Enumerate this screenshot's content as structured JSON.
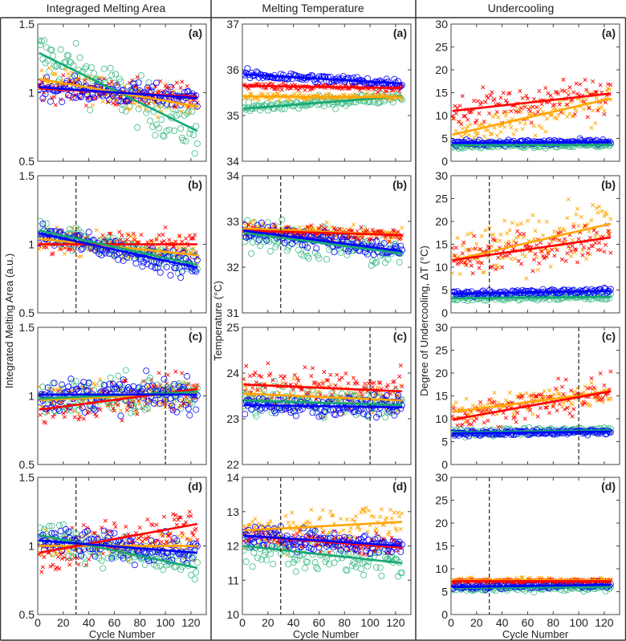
{
  "columns": [
    {
      "title": "Integraged Melting Area",
      "ylabel": "Integrated Melting Area (a.u.)"
    },
    {
      "title": "Melting Temperature",
      "ylabel": "Temperature (°C)"
    },
    {
      "title": "Undercooling",
      "ylabel": "Degree of Undercooling, ΔT (°C)"
    }
  ],
  "xlabel": "Cycle Number",
  "colors": {
    "blue": "#0000ff",
    "red": "#ff0000",
    "orange": "#ffa500",
    "green": "#16a872",
    "green_marker": "#3cbb85"
  },
  "chart_data": {
    "type": "scatter",
    "xlim": [
      0,
      132
    ],
    "xticks": [
      0,
      20,
      40,
      60,
      80,
      100,
      120
    ],
    "x_range_points": [
      1,
      125
    ],
    "panels": [
      {
        "col": 0,
        "row": 0,
        "label": "(a)",
        "ylim": [
          0.5,
          1.5
        ],
        "yticks": [
          0.5,
          1,
          1.5
        ],
        "dashed_x": null,
        "series": [
          {
            "name": "green",
            "marker": "o",
            "trend": [
              1.29,
              0.72
            ],
            "spread": 0.09
          },
          {
            "name": "orange",
            "marker": "x",
            "trend": [
              1.1,
              0.9
            ],
            "spread": 0.05
          },
          {
            "name": "red",
            "marker": "x",
            "trend": [
              1.03,
              0.97
            ],
            "spread": 0.05
          },
          {
            "name": "blue",
            "marker": "o",
            "trend": [
              1.04,
              0.96
            ],
            "spread": 0.04
          }
        ]
      },
      {
        "col": 0,
        "row": 1,
        "label": "(b)",
        "ylim": [
          0.5,
          1.5
        ],
        "yticks": [
          0.5,
          1,
          1.5
        ],
        "dashed_x": 30,
        "series": [
          {
            "name": "orange",
            "marker": "x",
            "trend": [
              1.04,
              0.92
            ],
            "spread": 0.05
          },
          {
            "name": "red",
            "marker": "x",
            "trend": [
              1.0,
              1.0
            ],
            "spread": 0.05
          },
          {
            "name": "green",
            "marker": "o",
            "trend": [
              1.1,
              0.85
            ],
            "spread": 0.04
          },
          {
            "name": "blue",
            "marker": "o",
            "trend": [
              1.08,
              0.83
            ],
            "spread": 0.04
          }
        ]
      },
      {
        "col": 0,
        "row": 2,
        "label": "(c)",
        "ylim": [
          0.5,
          1.5
        ],
        "yticks": [
          0.5,
          1,
          1.5
        ],
        "dashed_x": 100,
        "series": [
          {
            "name": "orange",
            "marker": "x",
            "trend": [
              0.97,
              1.02
            ],
            "spread": 0.06
          },
          {
            "name": "red",
            "marker": "x",
            "trend": [
              0.9,
              1.05
            ],
            "spread": 0.08
          },
          {
            "name": "green",
            "marker": "o",
            "trend": [
              0.98,
              1.03
            ],
            "spread": 0.07
          },
          {
            "name": "blue",
            "marker": "o",
            "trend": [
              1.01,
              1.01
            ],
            "spread": 0.06
          }
        ]
      },
      {
        "col": 0,
        "row": 3,
        "label": "(d)",
        "ylim": [
          0.5,
          1.5
        ],
        "yticks": [
          0.5,
          1,
          1.5
        ],
        "dashed_x": 30,
        "series": [
          {
            "name": "orange",
            "marker": "x",
            "trend": [
              1.0,
              1.0
            ],
            "spread": 0.05
          },
          {
            "name": "red",
            "marker": "x",
            "trend": [
              0.95,
              1.16
            ],
            "spread": 0.07
          },
          {
            "name": "green",
            "marker": "o",
            "trend": [
              1.08,
              0.84
            ],
            "spread": 0.06
          },
          {
            "name": "blue",
            "marker": "o",
            "trend": [
              1.04,
              0.95
            ],
            "spread": 0.05
          }
        ]
      },
      {
        "col": 1,
        "row": 0,
        "label": "(a)",
        "ylim": [
          34,
          37
        ],
        "yticks": [
          34,
          35,
          36,
          37
        ],
        "dashed_x": null,
        "series": [
          {
            "name": "green",
            "marker": "o",
            "trend": [
              35.15,
              35.42
            ],
            "spread": 0.06
          },
          {
            "name": "orange",
            "marker": "x",
            "trend": [
              35.42,
              35.4
            ],
            "spread": 0.04
          },
          {
            "name": "red",
            "marker": "x",
            "trend": [
              35.65,
              35.6
            ],
            "spread": 0.04
          },
          {
            "name": "blue",
            "marker": "o",
            "trend": [
              35.9,
              35.7
            ],
            "spread": 0.05
          }
        ]
      },
      {
        "col": 1,
        "row": 1,
        "label": "(b)",
        "ylim": [
          31,
          34
        ],
        "yticks": [
          31,
          32,
          33,
          34
        ],
        "dashed_x": 30,
        "series": [
          {
            "name": "green",
            "marker": "o",
            "trend": [
              32.75,
              32.3
            ],
            "spread": 0.2
          },
          {
            "name": "orange",
            "marker": "x",
            "trend": [
              32.85,
              32.7
            ],
            "spread": 0.08
          },
          {
            "name": "red",
            "marker": "x",
            "trend": [
              32.8,
              32.7
            ],
            "spread": 0.08
          },
          {
            "name": "blue",
            "marker": "o",
            "trend": [
              32.8,
              32.35
            ],
            "spread": 0.1
          }
        ]
      },
      {
        "col": 1,
        "row": 2,
        "label": "(c)",
        "ylim": [
          22,
          25
        ],
        "yticks": [
          22,
          23,
          24,
          25
        ],
        "dashed_x": 100,
        "series": [
          {
            "name": "orange",
            "marker": "x",
            "trend": [
              23.55,
              23.4
            ],
            "spread": 0.15
          },
          {
            "name": "red",
            "marker": "x",
            "trend": [
              23.75,
              23.6
            ],
            "spread": 0.2
          },
          {
            "name": "green",
            "marker": "o",
            "trend": [
              23.4,
              23.3
            ],
            "spread": 0.15
          },
          {
            "name": "blue",
            "marker": "o",
            "trend": [
              23.3,
              23.25
            ],
            "spread": 0.1
          }
        ]
      },
      {
        "col": 1,
        "row": 3,
        "label": "(d)",
        "ylim": [
          10,
          14
        ],
        "yticks": [
          10,
          11,
          12,
          13,
          14
        ],
        "dashed_x": 30,
        "series": [
          {
            "name": "orange",
            "marker": "x",
            "trend": [
              12.45,
              12.7
            ],
            "spread": 0.3
          },
          {
            "name": "green",
            "marker": "o",
            "trend": [
              12.0,
              11.5
            ],
            "spread": 0.3
          },
          {
            "name": "red",
            "marker": "x",
            "trend": [
              12.3,
              11.95
            ],
            "spread": 0.15
          },
          {
            "name": "blue",
            "marker": "o",
            "trend": [
              12.3,
              12.0
            ],
            "spread": 0.15
          }
        ]
      },
      {
        "col": 2,
        "row": 0,
        "label": "(a)",
        "ylim": [
          0,
          30
        ],
        "yticks": [
          0,
          5,
          10,
          15,
          20,
          25,
          30
        ],
        "dashed_x": null,
        "series": [
          {
            "name": "orange",
            "marker": "x",
            "trend": [
              5.8,
              13.7
            ],
            "spread": 2.0
          },
          {
            "name": "red",
            "marker": "x",
            "trend": [
              11.0,
              14.8
            ],
            "spread": 2.0
          },
          {
            "name": "green",
            "marker": "o",
            "trend": [
              3.5,
              3.6
            ],
            "spread": 0.3
          },
          {
            "name": "blue",
            "marker": "o",
            "trend": [
              4.0,
              4.2
            ],
            "spread": 0.3
          }
        ]
      },
      {
        "col": 2,
        "row": 1,
        "label": "(b)",
        "ylim": [
          0,
          30
        ],
        "yticks": [
          0,
          5,
          10,
          15,
          20,
          25,
          30
        ],
        "dashed_x": 30,
        "series": [
          {
            "name": "orange",
            "marker": "x",
            "trend": [
              11.5,
              19.5
            ],
            "spread": 3.0
          },
          {
            "name": "red",
            "marker": "x",
            "trend": [
              11.5,
              16.5
            ],
            "spread": 2.0
          },
          {
            "name": "green",
            "marker": "o",
            "trend": [
              3.2,
              3.5
            ],
            "spread": 0.3
          },
          {
            "name": "blue",
            "marker": "o",
            "trend": [
              4.2,
              4.8
            ],
            "spread": 0.3
          }
        ]
      },
      {
        "col": 2,
        "row": 2,
        "label": "(c)",
        "ylim": [
          0,
          30
        ],
        "yticks": [
          0,
          5,
          10,
          15,
          20,
          25,
          30
        ],
        "dashed_x": 100,
        "series": [
          {
            "name": "orange",
            "marker": "x",
            "trend": [
              11.5,
              16.0
            ],
            "spread": 1.5
          },
          {
            "name": "red",
            "marker": "x",
            "trend": [
              9.8,
              16.0
            ],
            "spread": 1.8
          },
          {
            "name": "green",
            "marker": "o",
            "trend": [
              7.0,
              7.5
            ],
            "spread": 0.4
          },
          {
            "name": "blue",
            "marker": "o",
            "trend": [
              6.8,
              7.2
            ],
            "spread": 0.3
          }
        ]
      },
      {
        "col": 2,
        "row": 3,
        "label": "(d)",
        "ylim": [
          0,
          30
        ],
        "yticks": [
          0,
          5,
          10,
          15,
          20,
          25,
          30
        ],
        "dashed_x": 30,
        "series": [
          {
            "name": "orange",
            "marker": "x",
            "trend": [
              7.5,
              7.5
            ],
            "spread": 0.3
          },
          {
            "name": "green",
            "marker": "o",
            "trend": [
              5.8,
              6.0
            ],
            "spread": 0.4
          },
          {
            "name": "blue",
            "marker": "o",
            "trend": [
              6.0,
              6.5
            ],
            "spread": 0.3
          },
          {
            "name": "red",
            "marker": "x",
            "trend": [
              7.3,
              7.3
            ],
            "spread": 0.2
          }
        ]
      }
    ]
  }
}
